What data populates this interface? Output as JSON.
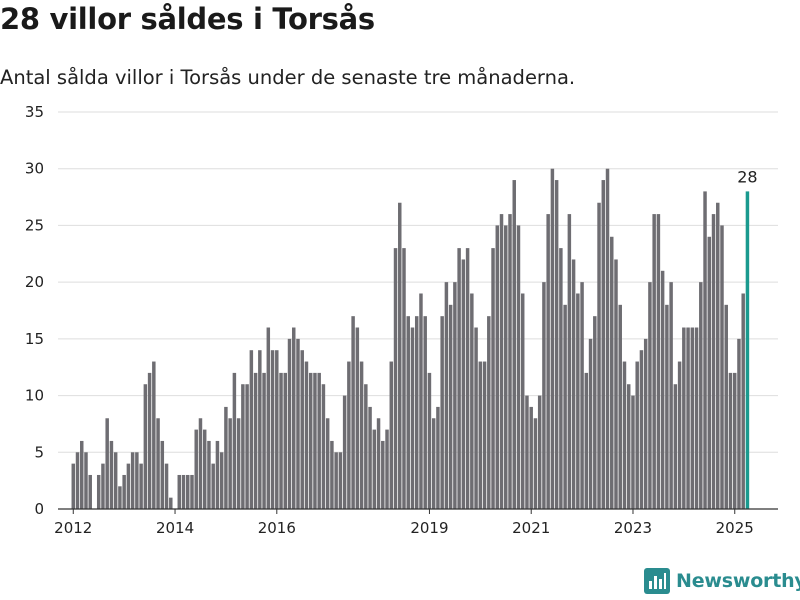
{
  "title": "28 villor såldes i Torsås",
  "subtitle": "Antal sålda villor i Torsås under de senaste tre månaderna.",
  "brand": {
    "name": "Newsworthy",
    "icon": "bar-chart-logo-icon",
    "color": "#2a8c8f"
  },
  "chart_data": {
    "type": "bar",
    "x_start": 2012.0,
    "x_step": 0.08333,
    "xlim": [
      2011.7,
      2025.85
    ],
    "ylim": [
      0,
      35
    ],
    "yticks": [
      "0",
      "5",
      "10",
      "15",
      "20",
      "25",
      "30",
      "35"
    ],
    "xticks": [
      {
        "value": 2012,
        "label": "2012"
      },
      {
        "value": 2014,
        "label": "2014"
      },
      {
        "value": 2016,
        "label": "2016"
      },
      {
        "value": 2019,
        "label": "2019"
      },
      {
        "value": 2021,
        "label": "2021"
      },
      {
        "value": 2023,
        "label": "2023"
      },
      {
        "value": 2025,
        "label": "2025"
      }
    ],
    "values": [
      4,
      5,
      6,
      5,
      3,
      0,
      3,
      4,
      8,
      6,
      5,
      2,
      3,
      4,
      5,
      5,
      4,
      11,
      12,
      13,
      8,
      6,
      4,
      1,
      0,
      3,
      3,
      3,
      3,
      7,
      8,
      7,
      6,
      4,
      6,
      5,
      9,
      8,
      12,
      8,
      11,
      11,
      14,
      12,
      14,
      12,
      16,
      14,
      14,
      12,
      12,
      15,
      16,
      15,
      14,
      13,
      12,
      12,
      12,
      11,
      8,
      6,
      5,
      5,
      10,
      13,
      17,
      16,
      13,
      11,
      9,
      7,
      8,
      6,
      7,
      13,
      23,
      27,
      23,
      17,
      16,
      17,
      19,
      17,
      12,
      8,
      9,
      17,
      20,
      18,
      20,
      23,
      22,
      23,
      19,
      16,
      13,
      13,
      17,
      23,
      25,
      26,
      25,
      26,
      29,
      25,
      19,
      10,
      9,
      8,
      10,
      20,
      26,
      30,
      29,
      23,
      18,
      26,
      22,
      19,
      20,
      12,
      15,
      17,
      27,
      29,
      30,
      24,
      22,
      18,
      13,
      11,
      10,
      13,
      14,
      15,
      20,
      26,
      26,
      21,
      18,
      20,
      11,
      13,
      16,
      16,
      16,
      16,
      20,
      28,
      24,
      26,
      27,
      25,
      18,
      12,
      12,
      15,
      19,
      28
    ],
    "highlight_last": true,
    "data_label": "28",
    "colors": {
      "bar": "#6e6d72",
      "highlight": "#1a9a8f",
      "grid": "#dedede",
      "axis": "#333333"
    }
  }
}
